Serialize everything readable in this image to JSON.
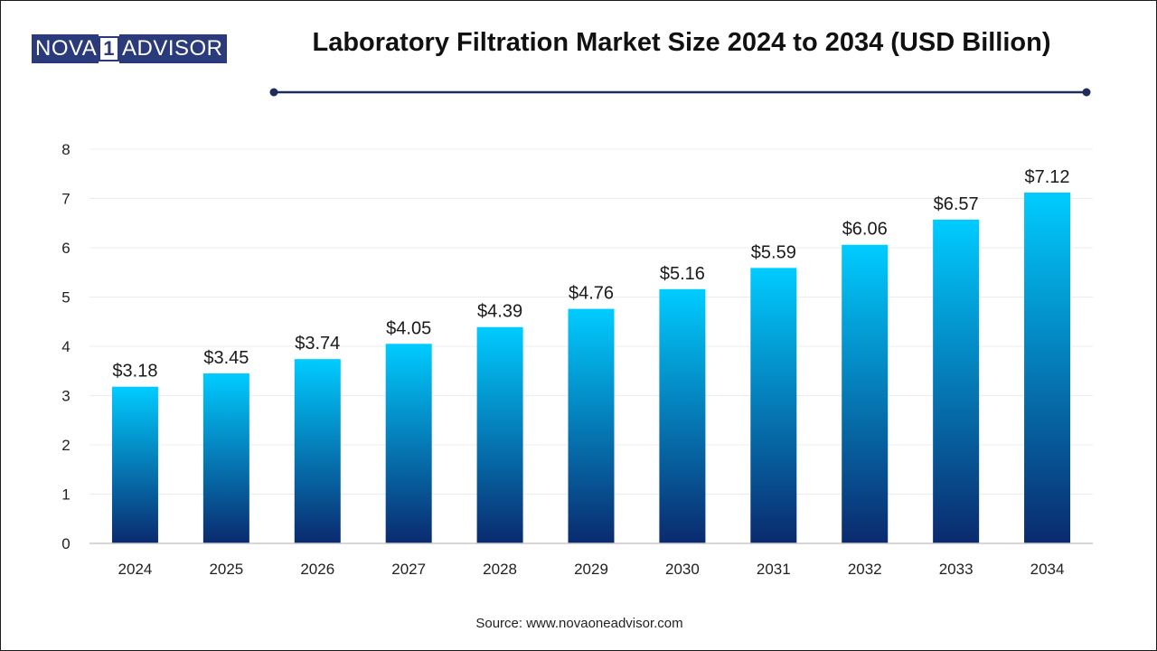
{
  "brand": {
    "part1": "NOVA",
    "one": "1",
    "part2": "ADVISOR"
  },
  "title": "Laboratory Filtration Market Size 2024 to 2034 (USD Billion)",
  "source": "Source: www.novaoneadvisor.com",
  "colors": {
    "bar_top": "#00ccff",
    "bar_bottom": "#0a2a6e",
    "rule": "#1f2d5a"
  },
  "chart_data": {
    "type": "bar",
    "title": "Laboratory Filtration Market Size 2024 to 2034 (USD Billion)",
    "categories": [
      "2024",
      "2025",
      "2026",
      "2027",
      "2028",
      "2029",
      "2030",
      "2031",
      "2032",
      "2033",
      "2034"
    ],
    "values": [
      3.18,
      3.45,
      3.74,
      4.05,
      4.39,
      4.76,
      5.16,
      5.59,
      6.06,
      6.57,
      7.12
    ],
    "value_labels": [
      "$3.18",
      "$3.45",
      "$3.74",
      "$4.05",
      "$4.39",
      "$4.76",
      "$5.16",
      "$5.59",
      "$6.06",
      "$6.57",
      "$7.12"
    ],
    "y_ticks": [
      "0",
      "1",
      "2",
      "3",
      "4",
      "5",
      "6",
      "7",
      "8"
    ],
    "xlabel": "",
    "ylabel": "",
    "ylim": [
      0,
      8
    ],
    "grid": true,
    "legend": "none"
  }
}
